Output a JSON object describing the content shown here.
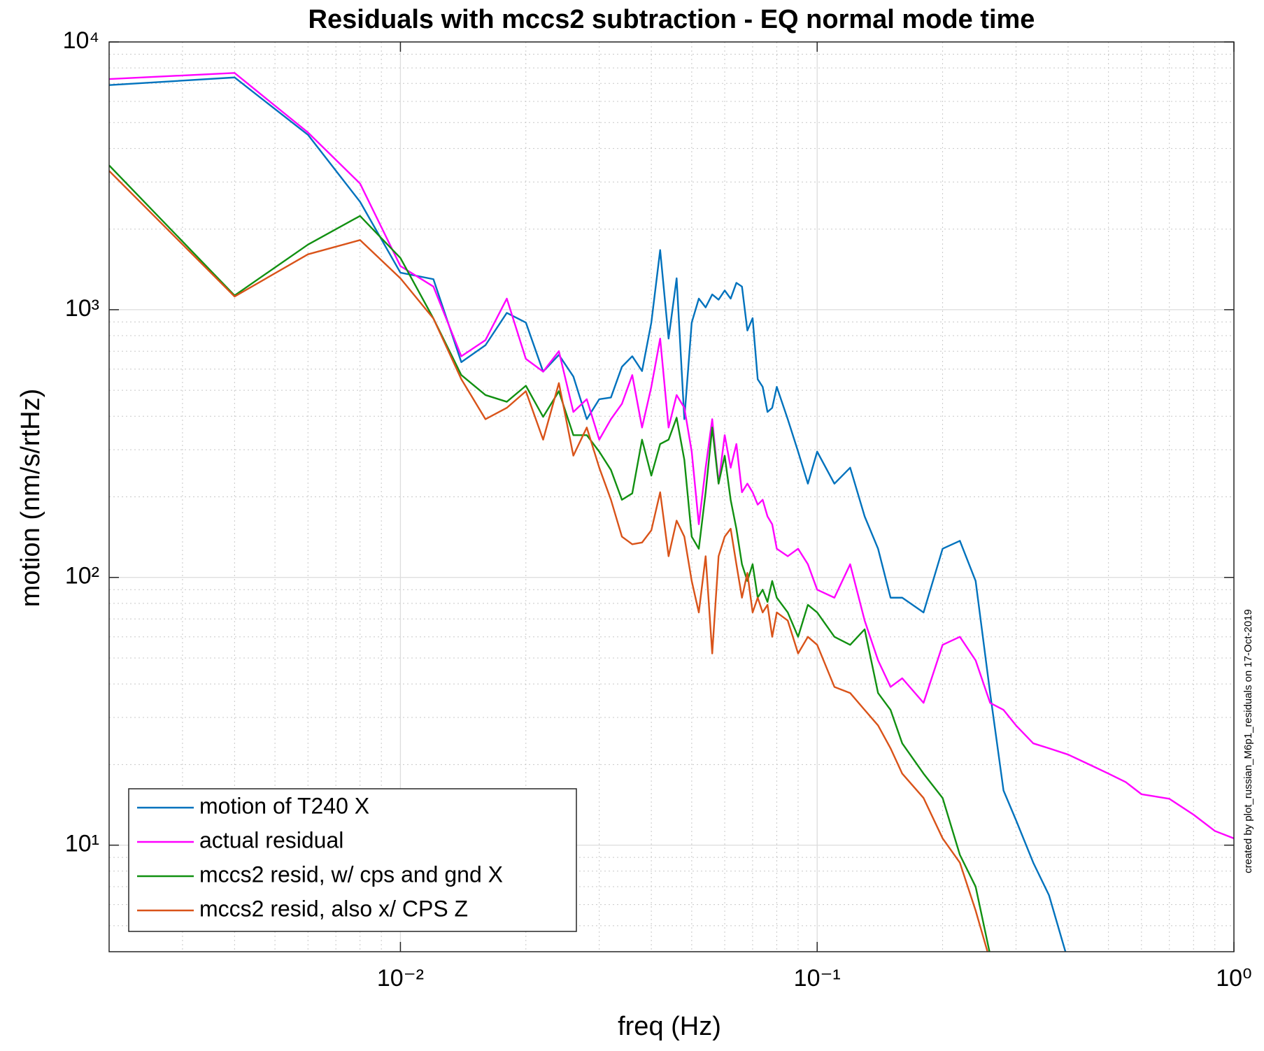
{
  "chart_data": {
    "type": "line",
    "title": "Residuals with mccs2 subtraction - EQ normal mode time",
    "x_label": "freq (Hz)",
    "y_label": "motion (nm/s/rtHz)",
    "annotation": "created by plot_russian_M6p1_residuals on 17-Oct-2019",
    "xscale": "log",
    "yscale": "log",
    "grid": true,
    "minor_grid": true,
    "legend": "lower left",
    "xlim": [
      0.002,
      1
    ],
    "ylim": [
      4,
      10000
    ],
    "xticks": [
      {
        "value": 0.01,
        "label": "10⁻²"
      },
      {
        "value": 0.1,
        "label": "10⁻¹"
      },
      {
        "value": 1,
        "label": "10⁰"
      }
    ],
    "yticks": [
      {
        "value": 10,
        "label": "10¹"
      },
      {
        "value": 100,
        "label": "10²"
      },
      {
        "value": 1000,
        "label": "10³"
      },
      {
        "value": 10000,
        "label": "10⁴"
      }
    ],
    "x": [
      0.002,
      0.004,
      0.006,
      0.008,
      0.01,
      0.012,
      0.014,
      0.016,
      0.018,
      0.02,
      0.022,
      0.024,
      0.026,
      0.028,
      0.03,
      0.032,
      0.034,
      0.036,
      0.038,
      0.04,
      0.042,
      0.044,
      0.046,
      0.048,
      0.05,
      0.052,
      0.054,
      0.056,
      0.058,
      0.06,
      0.062,
      0.064,
      0.066,
      0.068,
      0.07,
      0.072,
      0.074,
      0.076,
      0.078,
      0.08,
      0.085,
      0.09,
      0.095,
      0.1,
      0.11,
      0.12,
      0.13,
      0.14,
      0.15,
      0.16,
      0.18,
      0.2,
      0.22,
      0.24,
      0.26,
      0.28,
      0.3,
      0.33,
      0.36,
      0.4,
      0.45,
      0.5,
      0.55,
      0.6,
      0.7,
      0.8,
      0.9,
      1.0
    ],
    "series": [
      {
        "name": "motion of T240 X",
        "color": "#0072bd",
        "values": [
          6900,
          7370,
          4500,
          2530,
          1375,
          1300,
          637,
          737,
          973,
          895,
          587,
          678,
          563,
          390,
          463,
          470,
          612,
          670,
          590,
          895,
          1670,
          780,
          1310,
          390,
          895,
          1100,
          1020,
          1140,
          1090,
          1180,
          1100,
          1260,
          1220,
          836,
          930,
          550,
          515,
          415,
          430,
          515,
          390,
          295,
          224,
          295,
          224,
          257,
          169,
          128,
          84,
          84,
          74,
          128,
          137,
          97,
          37,
          16,
          12.4,
          8.6,
          6.5,
          3.7,
          null,
          null,
          null,
          null,
          null,
          null,
          null,
          null
        ]
      },
      {
        "name": "actual residual",
        "color": "#ff00ff",
        "values": [
          7270,
          7660,
          4590,
          2960,
          1455,
          1220,
          670,
          770,
          1100,
          655,
          587,
          700,
          415,
          463,
          327,
          390,
          445,
          570,
          363,
          515,
          780,
          363,
          480,
          430,
          295,
          158,
          257,
          390,
          224,
          340,
          257,
          315,
          208,
          224,
          208,
          187,
          195,
          169,
          158,
          128,
          120,
          128,
          112,
          90,
          84,
          112,
          69,
          49,
          39,
          42,
          34,
          56,
          60,
          49,
          34,
          32,
          28,
          24,
          23,
          21.8,
          20,
          18.5,
          17.2,
          15.5,
          14.9,
          13.0,
          11.3,
          10.6
        ]
      },
      {
        "name": "mccs2 resid, w/ cps and gnd X",
        "color": "#119011",
        "values": [
          3460,
          1130,
          1750,
          2240,
          1560,
          927,
          570,
          480,
          453,
          520,
          398,
          496,
          340,
          340,
          295,
          252,
          195,
          206,
          327,
          240,
          315,
          327,
          395,
          275,
          142,
          128,
          208,
          363,
          224,
          285,
          195,
          152,
          112,
          97,
          112,
          84,
          90,
          81,
          97,
          84,
          74,
          60,
          79,
          74,
          60,
          56,
          64,
          37,
          32,
          24,
          18.5,
          15,
          9.2,
          7.0,
          3.9,
          null,
          null,
          null,
          null,
          null,
          null,
          null,
          null,
          null,
          null,
          null,
          null,
          null
        ]
      },
      {
        "name": "mccs2 resid, also x/ CPS Z",
        "color": "#d95319",
        "values": [
          3300,
          1120,
          1610,
          1820,
          1310,
          927,
          550,
          390,
          430,
          496,
          327,
          532,
          285,
          363,
          257,
          195,
          142,
          133,
          135,
          150,
          208,
          120,
          163,
          142,
          97,
          74,
          120,
          52,
          120,
          142,
          152,
          112,
          84,
          104,
          74,
          84,
          74,
          79,
          60,
          74,
          69,
          52,
          60,
          56,
          39,
          37,
          32,
          28,
          23,
          18.5,
          15,
          10.6,
          8.6,
          5.7,
          3.7,
          null,
          null,
          null,
          null,
          null,
          null,
          null,
          null,
          null,
          null,
          null,
          null,
          null
        ]
      }
    ]
  }
}
